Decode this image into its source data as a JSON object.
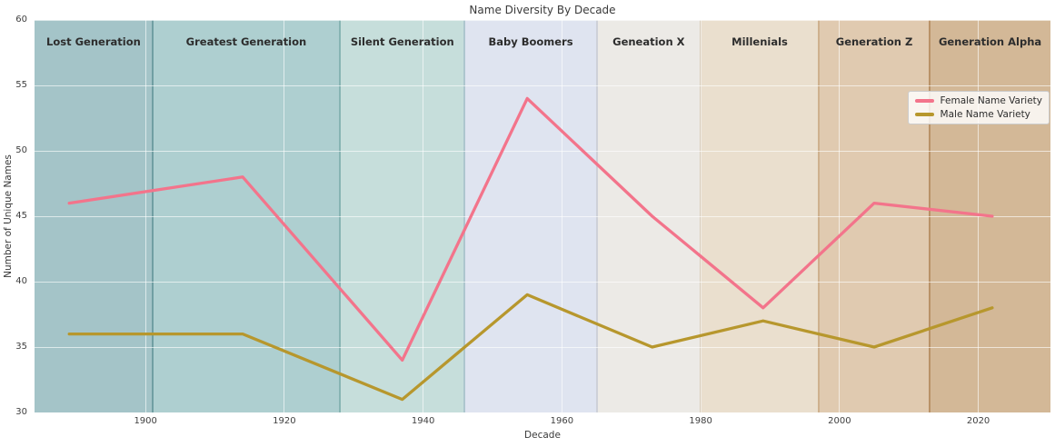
{
  "chart_data": {
    "type": "line",
    "title": "Name Diversity By Decade",
    "xlabel": "Decade",
    "ylabel": "Number of Unique Names",
    "xlim": [
      1884,
      2030.4
    ],
    "ylim": [
      30,
      60
    ],
    "x_ticks": [
      1900,
      1920,
      1940,
      1960,
      1980,
      2000,
      2020
    ],
    "y_ticks": [
      30,
      35,
      40,
      45,
      50,
      55,
      60
    ],
    "grid": true,
    "grid_color": "white",
    "legend_position": "upper right",
    "x": [
      1889,
      1914,
      1937,
      1955,
      1973,
      1989,
      2005,
      2022
    ],
    "series": [
      {
        "name": "Female Name Variety",
        "color": "#f3748b",
        "values": [
          46,
          48,
          34,
          54,
          45,
          38,
          46,
          45
        ]
      },
      {
        "name": "Male Name Variety",
        "color": "#b7972d",
        "values": [
          36,
          36,
          31,
          39,
          35,
          37,
          35,
          38
        ]
      }
    ],
    "bands": [
      {
        "label": "Lost Generation",
        "start": 1884,
        "end": 1901,
        "color": "#a4c4c8"
      },
      {
        "label": "Greatest Generation",
        "start": 1901,
        "end": 1928,
        "color": "#aecfd0"
      },
      {
        "label": "Silent Generation",
        "start": 1928,
        "end": 1946,
        "color": "#c6dedb"
      },
      {
        "label": "Baby Boomers",
        "start": 1946,
        "end": 1965,
        "color": "#dfe4f0"
      },
      {
        "label": "Geneation X",
        "start": 1965,
        "end": 1980,
        "color": "#eceae6"
      },
      {
        "label": "Millenials",
        "start": 1980,
        "end": 1997,
        "color": "#eadfce"
      },
      {
        "label": "Generation Z",
        "start": 1997,
        "end": 2013,
        "color": "#e0cab0"
      },
      {
        "label": "Generation Alpha",
        "start": 2013,
        "end": 2030.4,
        "color": "#d3b897"
      }
    ]
  },
  "legend": {
    "entries": [
      {
        "label": "Female Name Variety",
        "color": "#f3748b"
      },
      {
        "label": "Male Name Variety",
        "color": "#b7972d"
      }
    ]
  }
}
